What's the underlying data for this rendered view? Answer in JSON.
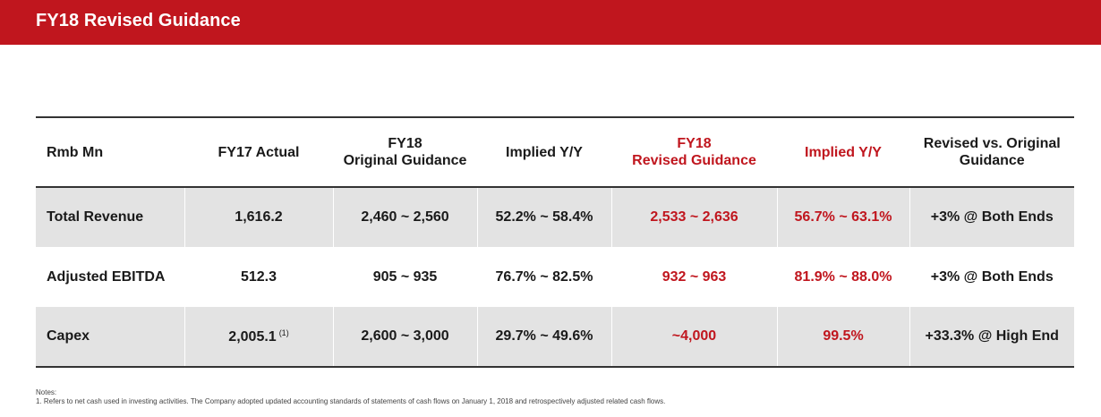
{
  "header": {
    "title": "FY18 Revised Guidance"
  },
  "table": {
    "headers": [
      {
        "line1": "Rmb Mn",
        "line2": ""
      },
      {
        "line1": "FY17 Actual",
        "line2": ""
      },
      {
        "line1": "FY18",
        "line2": "Original Guidance"
      },
      {
        "line1": "Implied Y/Y",
        "line2": ""
      },
      {
        "line1": "FY18",
        "line2": "Revised Guidance"
      },
      {
        "line1": "Implied Y/Y",
        "line2": ""
      },
      {
        "line1": "Revised vs. Original",
        "line2": "Guidance"
      }
    ],
    "rows": [
      {
        "label": "Total Revenue",
        "fy17_actual": "1,616.2",
        "fy17_footnote": "",
        "original_guidance": "2,460 ~ 2,560",
        "original_implied": "52.2% ~ 58.4%",
        "revised_guidance": "2,533 ~ 2,636",
        "revised_implied": "56.7% ~ 63.1%",
        "revised_vs_original": "+3% @ Both Ends"
      },
      {
        "label": "Adjusted EBITDA",
        "fy17_actual": "512.3",
        "fy17_footnote": "",
        "original_guidance": "905 ~ 935",
        "original_implied": "76.7% ~ 82.5%",
        "revised_guidance": "932 ~ 963",
        "revised_implied": "81.9% ~ 88.0%",
        "revised_vs_original": "+3% @ Both Ends"
      },
      {
        "label": "Capex",
        "fy17_actual": "2,005.1",
        "fy17_footnote": "(1)",
        "original_guidance": "2,600 ~ 3,000",
        "original_implied": "29.7% ~ 49.6%",
        "revised_guidance": "~4,000",
        "revised_implied": "99.5%",
        "revised_vs_original": "+33.3% @ High End"
      }
    ]
  },
  "notes": {
    "title": "Notes:",
    "items": [
      "1. Refers to net cash used in investing activities. The Company adopted updated accounting standards of statements of cash flows on January 1, 2018 and retrospectively adjusted related cash flows."
    ]
  },
  "colors": {
    "brand_red": "#c0161e",
    "row_shade": "#e3e3e3",
    "rule": "#333333"
  }
}
